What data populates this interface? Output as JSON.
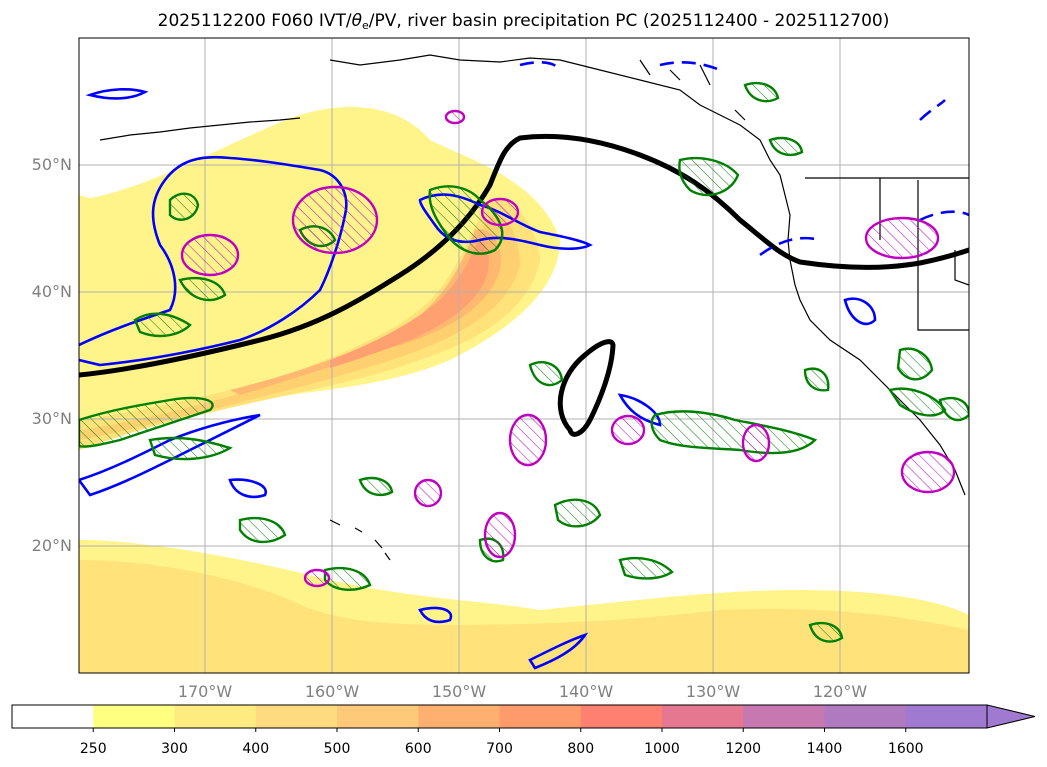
{
  "title": {
    "prefix": "2025112200 F060 IVT/",
    "theta": "θ",
    "theta_sub": "e",
    "suffix": "/PV, river basin precipitation PC (2025112400 - 2025112700)"
  },
  "lat_labels": [
    "50°N",
    "40°N",
    "30°N",
    "20°N"
  ],
  "lon_labels": [
    "170°W",
    "160°W",
    "150°W",
    "140°W",
    "130°W",
    "120°W"
  ],
  "colorbar": {
    "levels": [
      "250",
      "300",
      "400",
      "500",
      "600",
      "700",
      "800",
      "1000",
      "1200",
      "1400",
      "1600"
    ],
    "colors": [
      "#ffffff",
      "#ffff80",
      "#ffec80",
      "#ffdb80",
      "#ffc97a",
      "#ffb070",
      "#ff9a6a",
      "#ff8070",
      "#e57890",
      "#c878b0",
      "#b07ac0",
      "#a07ad0"
    ]
  },
  "layers": {
    "ivt_colors": [
      "#fff48a",
      "#ffe37a",
      "#ffd070",
      "#ffb870",
      "#ffa070"
    ],
    "theta_e_color": "#000000",
    "pv_color": "#0000ff",
    "precip_green": "#008000",
    "precip_magenta": "#c000c0"
  }
}
